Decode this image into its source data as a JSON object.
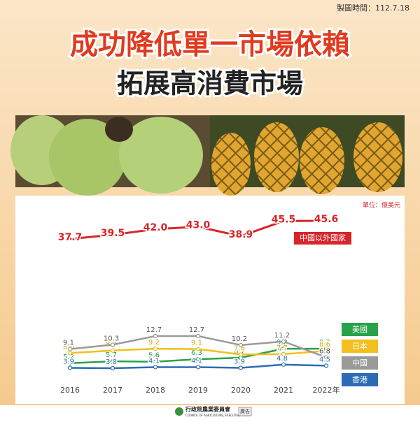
{
  "header": {
    "date": "製圖時間：112.7.18",
    "title": "成功降低單一市場依賴",
    "subtitle": "拓展高消費市場"
  },
  "chart_data": {
    "type": "line",
    "unit": "單位：億美元",
    "categories": [
      "2016",
      "2017",
      "2018",
      "2019",
      "2020",
      "2021",
      "2022年"
    ],
    "series": [
      {
        "name": "中國以外國家",
        "color": "#d7262b",
        "values": [
          37.7,
          39.5,
          42.0,
          43.0,
          38.9,
          45.5,
          45.6
        ],
        "value_labels": [
          "37.7",
          "39.5",
          "42.0",
          "43.0",
          "38.9",
          "45.5",
          "45.6"
        ]
      },
      {
        "name": "美國",
        "color": "#2aa24a",
        "values": [
          5.2,
          5.7,
          5.6,
          6.3,
          6.7,
          9.2,
          9.2
        ]
      },
      {
        "name": "日本",
        "color": "#f2bf1e",
        "values": [
          8.0,
          8.7,
          9.2,
          9.1,
          7.6,
          7.7,
          8.6
        ],
        "value_labels": [
          "8.0",
          "8.7",
          "9.2",
          "9.1",
          "7.6",
          "7.7",
          "8.6"
        ]
      },
      {
        "name": "中國",
        "color": "#9a9a9a",
        "values": [
          9.1,
          10.3,
          12.7,
          12.7,
          10.2,
          11.2,
          6.8
        ]
      },
      {
        "name": "香港",
        "color": "#2b6cb3",
        "values": [
          3.9,
          3.8,
          4.1,
          4.1,
          3.9,
          4.8,
          4.5
        ]
      }
    ]
  },
  "footer": {
    "org": "行政院農業委員會",
    "org_en": "COUNCIL OF AGRICULTURE, EXECUTIVE YUAN",
    "ad": "廣告"
  }
}
